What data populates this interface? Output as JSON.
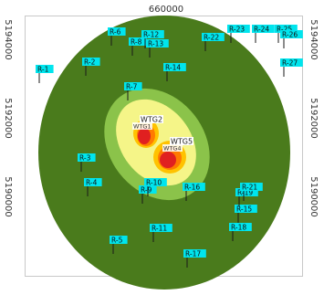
{
  "map": {
    "x_axis": {
      "tick_labels": [
        "660000"
      ]
    },
    "y_axis": {
      "tick_labels": [
        "5194000",
        "5192000",
        "5190000"
      ]
    },
    "receptor_color": "#00e5ee",
    "receptors": [
      {
        "id": "R-1",
        "label": "R-1"
      },
      {
        "id": "R-2",
        "label": "R-2"
      },
      {
        "id": "R-3",
        "label": "R-3"
      },
      {
        "id": "R-4",
        "label": "R-4"
      },
      {
        "id": "R-5",
        "label": "R-5"
      },
      {
        "id": "R-6",
        "label": "R-6"
      },
      {
        "id": "R-7",
        "label": "R-7"
      },
      {
        "id": "R-8",
        "label": "R-8"
      },
      {
        "id": "R-9",
        "label": "R-9"
      },
      {
        "id": "R-10",
        "label": "R-10"
      },
      {
        "id": "R-11",
        "label": "R-11"
      },
      {
        "id": "R-12",
        "label": "R-12"
      },
      {
        "id": "R-13",
        "label": "R-13"
      },
      {
        "id": "R-14",
        "label": "R-14"
      },
      {
        "id": "R-15",
        "label": "R-15"
      },
      {
        "id": "R-16",
        "label": "R-16"
      },
      {
        "id": "R-17",
        "label": "R-17"
      },
      {
        "id": "R-18",
        "label": "R-18"
      },
      {
        "id": "R-19",
        "label": "R-19"
      },
      {
        "id": "R-21",
        "label": "R-21"
      },
      {
        "id": "R-22",
        "label": "R-22"
      },
      {
        "id": "R-23",
        "label": "R-23"
      },
      {
        "id": "R-24",
        "label": "R-24"
      },
      {
        "id": "R-25",
        "label": "R-25"
      },
      {
        "id": "R-26",
        "label": "R-26"
      },
      {
        "id": "R-27",
        "label": "R-27"
      }
    ],
    "turbines": [
      {
        "id": "WTG2",
        "label": "WTG2",
        "sub_label": "WTG1"
      },
      {
        "id": "WTG5",
        "label": "WTG5",
        "sub_label": "WTG4"
      }
    ],
    "contour_colors": [
      "#4a7b1c",
      "#8bc34a",
      "#f5f588",
      "#ffc200",
      "#ff7a00",
      "#e02020"
    ]
  }
}
